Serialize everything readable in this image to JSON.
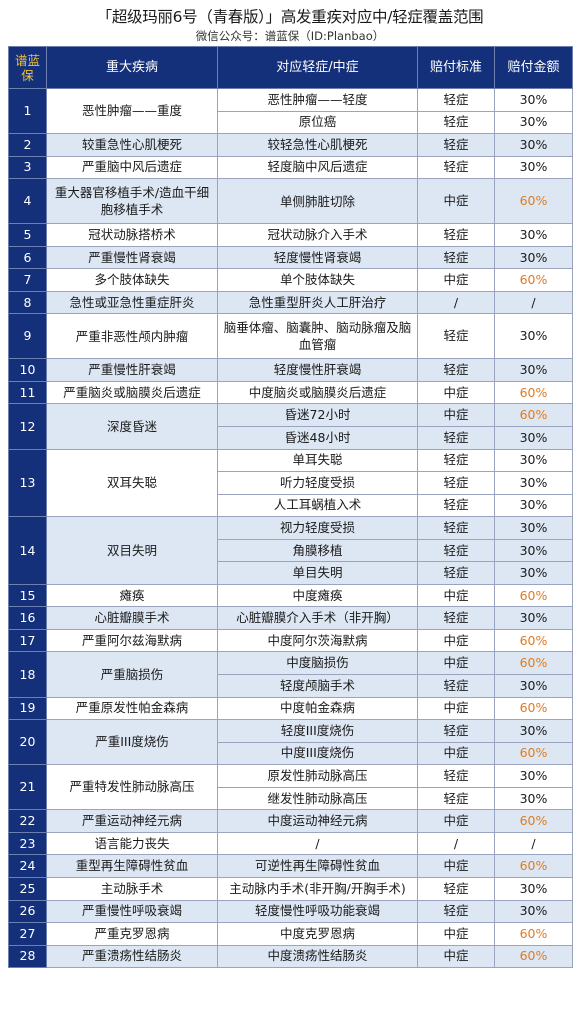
{
  "header": {
    "title": "「超级玛丽6号（青春版）」高发重疾对应中/轻症覆盖范围",
    "subtitle": "微信公众号：谱蓝保（ID:Planbao）"
  },
  "colors": {
    "header_bg": "#14307a",
    "alt_row": "#dde7f3",
    "highlight": "#e07b1f"
  },
  "table": {
    "headers": [
      "谱蓝保",
      "重大疾病",
      "对应轻症/中症",
      "赔付标准",
      "赔付金额"
    ],
    "groups": [
      {
        "id": "1",
        "disease": "恶性肿瘤——重度",
        "subs": [
          {
            "name": "恶性肿瘤——轻度",
            "std": "轻症",
            "amt": "30%"
          },
          {
            "name": "原位癌",
            "std": "轻症",
            "amt": "30%"
          }
        ]
      },
      {
        "id": "2",
        "disease": "较重急性心肌梗死",
        "subs": [
          {
            "name": "较轻急性心肌梗死",
            "std": "轻症",
            "amt": "30%"
          }
        ]
      },
      {
        "id": "3",
        "disease": "严重脑中风后遗症",
        "subs": [
          {
            "name": "轻度脑中风后遗症",
            "std": "轻症",
            "amt": "30%"
          }
        ]
      },
      {
        "id": "4",
        "disease": "重大器官移植手术/造血干细胞移植手术",
        "subs": [
          {
            "name": "单侧肺脏切除",
            "std": "中症",
            "amt": "60%"
          }
        ]
      },
      {
        "id": "5",
        "disease": "冠状动脉搭桥术",
        "subs": [
          {
            "name": "冠状动脉介入手术",
            "std": "轻症",
            "amt": "30%"
          }
        ]
      },
      {
        "id": "6",
        "disease": "严重慢性肾衰竭",
        "subs": [
          {
            "name": "轻度慢性肾衰竭",
            "std": "轻症",
            "amt": "30%"
          }
        ]
      },
      {
        "id": "7",
        "disease": "多个肢体缺失",
        "subs": [
          {
            "name": "单个肢体缺失",
            "std": "中症",
            "amt": "60%"
          }
        ]
      },
      {
        "id": "8",
        "disease": "急性或亚急性重症肝炎",
        "subs": [
          {
            "name": "急性重型肝炎人工肝治疗",
            "std": "/",
            "amt": "/"
          }
        ]
      },
      {
        "id": "9",
        "disease": "严重非恶性颅内肿瘤",
        "subs": [
          {
            "name": "脑垂体瘤、脑囊肿、脑动脉瘤及脑血管瘤",
            "std": "轻症",
            "amt": "30%"
          }
        ]
      },
      {
        "id": "10",
        "disease": "严重慢性肝衰竭",
        "subs": [
          {
            "name": "轻度慢性肝衰竭",
            "std": "轻症",
            "amt": "30%"
          }
        ]
      },
      {
        "id": "11",
        "disease": "严重脑炎或脑膜炎后遗症",
        "subs": [
          {
            "name": "中度脑炎或脑膜炎后遗症",
            "std": "中症",
            "amt": "60%"
          }
        ]
      },
      {
        "id": "12",
        "disease": "深度昏迷",
        "subs": [
          {
            "name": "昏迷72小时",
            "std": "中症",
            "amt": "60%"
          },
          {
            "name": "昏迷48小时",
            "std": "轻症",
            "amt": "30%"
          }
        ]
      },
      {
        "id": "13",
        "disease": "双耳失聪",
        "subs": [
          {
            "name": "单耳失聪",
            "std": "轻症",
            "amt": "30%"
          },
          {
            "name": "听力轻度受损",
            "std": "轻症",
            "amt": "30%"
          },
          {
            "name": "人工耳蜗植入术",
            "std": "轻症",
            "amt": "30%"
          }
        ]
      },
      {
        "id": "14",
        "disease": "双目失明",
        "subs": [
          {
            "name": "视力轻度受损",
            "std": "轻症",
            "amt": "30%"
          },
          {
            "name": "角膜移植",
            "std": "轻症",
            "amt": "30%"
          },
          {
            "name": "单目失明",
            "std": "轻症",
            "amt": "30%"
          }
        ]
      },
      {
        "id": "15",
        "disease": "瘫痪",
        "subs": [
          {
            "name": "中度瘫痪",
            "std": "中症",
            "amt": "60%"
          }
        ]
      },
      {
        "id": "16",
        "disease": "心脏瓣膜手术",
        "subs": [
          {
            "name": "心脏瓣膜介入手术（非开胸）",
            "std": "轻症",
            "amt": "30%"
          }
        ]
      },
      {
        "id": "17",
        "disease": "严重阿尔兹海默病",
        "subs": [
          {
            "name": "中度阿尔茨海默病",
            "std": "中症",
            "amt": "60%"
          }
        ]
      },
      {
        "id": "18",
        "disease": "严重脑损伤",
        "subs": [
          {
            "name": "中度脑损伤",
            "std": "中症",
            "amt": "60%"
          },
          {
            "name": "轻度颅脑手术",
            "std": "轻症",
            "amt": "30%"
          }
        ]
      },
      {
        "id": "19",
        "disease": "严重原发性帕金森病",
        "subs": [
          {
            "name": "中度帕金森病",
            "std": "中症",
            "amt": "60%"
          }
        ]
      },
      {
        "id": "20",
        "disease": "严重III度烧伤",
        "subs": [
          {
            "name": "轻度III度烧伤",
            "std": "轻症",
            "amt": "30%"
          },
          {
            "name": "中度III度烧伤",
            "std": "中症",
            "amt": "60%"
          }
        ]
      },
      {
        "id": "21",
        "disease": "严重特发性肺动脉高压",
        "subs": [
          {
            "name": "原发性肺动脉高压",
            "std": "轻症",
            "amt": "30%"
          },
          {
            "name": "继发性肺动脉高压",
            "std": "轻症",
            "amt": "30%"
          }
        ]
      },
      {
        "id": "22",
        "disease": "严重运动神经元病",
        "subs": [
          {
            "name": "中度运动神经元病",
            "std": "中症",
            "amt": "60%"
          }
        ]
      },
      {
        "id": "23",
        "disease": "语言能力丧失",
        "subs": [
          {
            "name": "/",
            "std": "/",
            "amt": "/"
          }
        ]
      },
      {
        "id": "24",
        "disease": "重型再生障碍性贫血",
        "subs": [
          {
            "name": "可逆性再生障碍性贫血",
            "std": "中症",
            "amt": "60%"
          }
        ]
      },
      {
        "id": "25",
        "disease": "主动脉手术",
        "subs": [
          {
            "name": "主动脉内手术(非开胸/开胸手术)",
            "std": "轻症",
            "amt": "30%"
          }
        ]
      },
      {
        "id": "26",
        "disease": "严重慢性呼吸衰竭",
        "subs": [
          {
            "name": "轻度慢性呼吸功能衰竭",
            "std": "轻症",
            "amt": "30%"
          }
        ]
      },
      {
        "id": "27",
        "disease": "严重克罗恩病",
        "subs": [
          {
            "name": "中度克罗恩病",
            "std": "中症",
            "amt": "60%"
          }
        ]
      },
      {
        "id": "28",
        "disease": "严重溃疡性结肠炎",
        "subs": [
          {
            "name": "中度溃疡性结肠炎",
            "std": "中症",
            "amt": "60%"
          }
        ]
      }
    ]
  }
}
